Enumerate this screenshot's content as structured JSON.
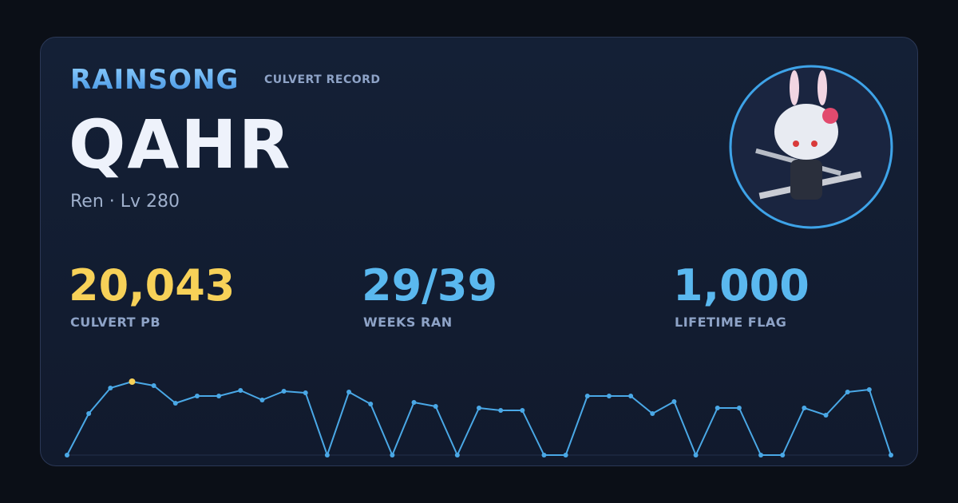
{
  "header": {
    "brand": "RAINSONG",
    "subtitle": "CULVERT RECORD"
  },
  "player": {
    "name": "QAHR",
    "info": "Ren · Lv 280"
  },
  "stats": [
    {
      "value": "20,043",
      "label": "CULVERT PB"
    },
    {
      "value": "29/39",
      "label": "WEEKS RAN"
    },
    {
      "value": "1,000",
      "label": "LIFETIME FLAG"
    }
  ],
  "sparkline": {
    "values": [
      0,
      11330,
      18300,
      20043,
      18954,
      14161,
      16122,
      16122,
      17647,
      15032,
      17429,
      16993,
      0,
      17211,
      13943,
      0,
      14379,
      13290,
      0,
      12854,
      12200,
      12200,
      0,
      0,
      16122,
      16122,
      16122,
      11329,
      14597,
      0,
      12854,
      12854,
      0,
      0,
      12854,
      10893,
      17211,
      17865,
      0
    ]
  }
}
